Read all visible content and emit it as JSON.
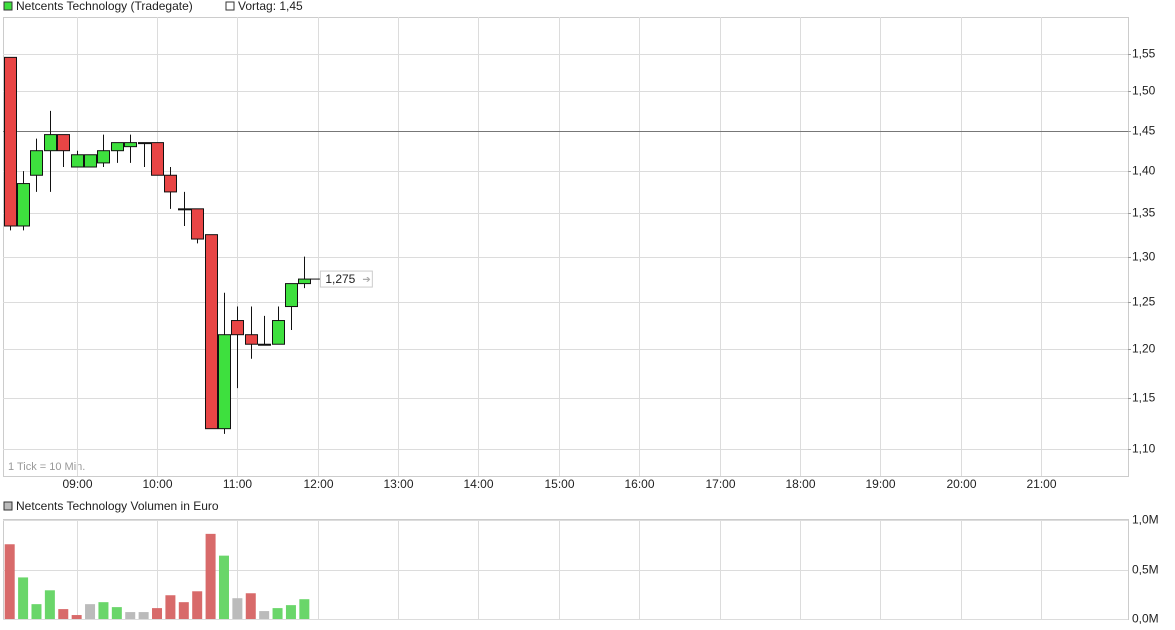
{
  "chart_data": [
    {
      "type": "candlestick",
      "title": "Netcents Technology (Tradegate)",
      "reference_label": "Vortag: 1,45",
      "reference_value": 1.45,
      "note": "1 Tick = 10 Min.",
      "last_label": "1,275",
      "x": [
        "08:10",
        "08:20",
        "08:30",
        "08:40",
        "08:50",
        "09:00",
        "09:10",
        "09:20",
        "09:30",
        "09:40",
        "09:50",
        "10:00",
        "10:10",
        "10:20",
        "10:30",
        "10:40",
        "10:50",
        "11:00",
        "11:10",
        "11:20",
        "11:30",
        "11:40",
        "11:50"
      ],
      "open": [
        1.545,
        1.335,
        1.395,
        1.425,
        1.445,
        1.405,
        1.405,
        1.41,
        1.425,
        1.43,
        1.435,
        1.435,
        1.395,
        1.355,
        1.355,
        1.325,
        1.12,
        1.23,
        1.215,
        1.205,
        1.205,
        1.245,
        1.27
      ],
      "high": [
        1.545,
        1.4,
        1.44,
        1.475,
        1.445,
        1.425,
        1.42,
        1.445,
        1.435,
        1.445,
        1.435,
        1.435,
        1.405,
        1.375,
        1.355,
        1.325,
        1.26,
        1.245,
        1.245,
        1.235,
        1.245,
        1.27,
        1.3
      ],
      "low": [
        1.33,
        1.33,
        1.375,
        1.375,
        1.405,
        1.405,
        1.405,
        1.405,
        1.41,
        1.41,
        1.405,
        1.395,
        1.355,
        1.335,
        1.315,
        1.12,
        1.115,
        1.16,
        1.19,
        1.205,
        1.205,
        1.22,
        1.265
      ],
      "close": [
        1.335,
        1.385,
        1.425,
        1.445,
        1.425,
        1.42,
        1.42,
        1.425,
        1.435,
        1.435,
        1.435,
        1.395,
        1.375,
        1.355,
        1.32,
        1.12,
        1.215,
        1.215,
        1.205,
        1.205,
        1.23,
        1.27,
        1.275
      ],
      "up_color": "#3ee03e",
      "down_color": "#e84545",
      "xlim": [
        "08:05",
        "22:05"
      ],
      "xticks": [
        "09:00",
        "10:00",
        "11:00",
        "12:00",
        "13:00",
        "14:00",
        "15:00",
        "16:00",
        "17:00",
        "18:00",
        "19:00",
        "20:00",
        "21:00"
      ],
      "ylim": [
        1.075,
        1.6
      ],
      "log_scale": true,
      "yticks": [
        {
          "value": 1.1,
          "label": "1,10"
        },
        {
          "value": 1.15,
          "label": "1,15"
        },
        {
          "value": 1.2,
          "label": "1,20"
        },
        {
          "value": 1.25,
          "label": "1,25"
        },
        {
          "value": 1.3,
          "label": "1,30"
        },
        {
          "value": 1.35,
          "label": "1,35"
        },
        {
          "value": 1.4,
          "label": "1,40"
        },
        {
          "value": 1.45,
          "label": "1,45"
        },
        {
          "value": 1.5,
          "label": "1,50"
        },
        {
          "value": 1.55,
          "label": "1,55"
        }
      ],
      "grid": true
    },
    {
      "type": "bar",
      "title": "Netcents Technology Volumen in Euro",
      "x": [
        "08:10",
        "08:20",
        "08:30",
        "08:40",
        "08:50",
        "09:00",
        "09:10",
        "09:20",
        "09:30",
        "09:40",
        "09:50",
        "10:00",
        "10:10",
        "10:20",
        "10:30",
        "10:40",
        "10:50",
        "11:00",
        "11:10",
        "11:20",
        "11:30",
        "11:40",
        "11:50"
      ],
      "values": [
        755000,
        420000,
        150000,
        290000,
        100000,
        40000,
        150000,
        170000,
        120000,
        70000,
        70000,
        110000,
        240000,
        170000,
        280000,
        860000,
        640000,
        210000,
        260000,
        80000,
        110000,
        140000,
        200000
      ],
      "colors": [
        "#d86a6a",
        "#6ad66a",
        "#6ad66a",
        "#6ad66a",
        "#d86a6a",
        "#d86a6a",
        "#bbbbbb",
        "#6ad66a",
        "#6ad66a",
        "#bbbbbb",
        "#bbbbbb",
        "#d86a6a",
        "#d86a6a",
        "#d86a6a",
        "#d86a6a",
        "#d86a6a",
        "#6ad66a",
        "#bbbbbb",
        "#d86a6a",
        "#bbbbbb",
        "#6ad66a",
        "#6ad66a",
        "#6ad66a"
      ],
      "ylim": [
        0,
        1000000
      ],
      "yticks": [
        {
          "value": 0,
          "label": "0,0M"
        },
        {
          "value": 500000,
          "label": "0,5M"
        },
        {
          "value": 1000000,
          "label": "1,0M"
        }
      ],
      "grid": true
    }
  ]
}
